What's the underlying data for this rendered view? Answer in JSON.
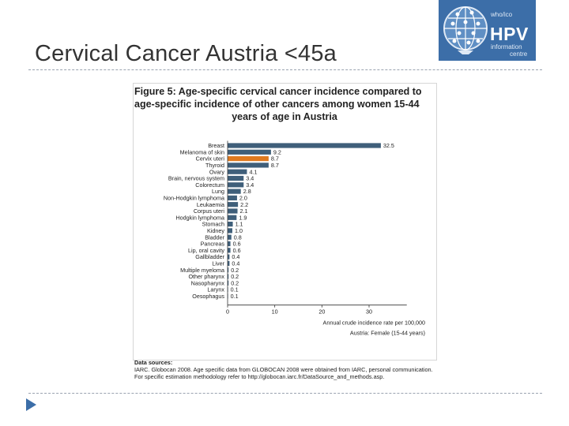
{
  "slide": {
    "title": "Cervical Cancer Austria <45a"
  },
  "logo": {
    "line1": "who/ico",
    "brand": "HPV",
    "line2": "information",
    "line3": "centre",
    "icon": "globe-icon"
  },
  "figure": {
    "title_line1": "Figure 5: Age-specific cervical cancer incidence compared to",
    "title_line2": "age-specific incidence of other cancers among women 15-44",
    "title_line3": "years of age in Austria",
    "sources_heading": "Data sources:",
    "sources_line1": "IARC. Globocan 2008. Age specific data from GLOBOCAN 2008 were obtained from IARC, personal communication.",
    "sources_line2": "For specific estimation methodology refer to http://globocan.iarc.fr/DataSource_and_methods.asp."
  },
  "chart_data": {
    "type": "bar",
    "orientation": "horizontal",
    "categories": [
      "Breast",
      "Melanoma of skin",
      "Cervix uteri",
      "Thyroid",
      "Ovary",
      "Brain, nervous system",
      "Colorectum",
      "Lung",
      "Non-Hodgkin lymphoma",
      "Leukaemia",
      "Corpus uteri",
      "Hodgkin lymphoma",
      "Stomach",
      "Kidney",
      "Bladder",
      "Pancreas",
      "Lip, oral cavity",
      "Gallbladder",
      "Liver",
      "Multiple myeloma",
      "Other pharynx",
      "Nasopharynx",
      "Larynx",
      "Oesophagus"
    ],
    "values": [
      32.5,
      9.2,
      8.7,
      8.7,
      4.1,
      3.4,
      3.4,
      2.8,
      2.0,
      2.2,
      2.1,
      1.9,
      1.1,
      1.0,
      0.8,
      0.6,
      0.6,
      0.4,
      0.4,
      0.2,
      0.2,
      0.2,
      0.1,
      0.1
    ],
    "value_labels": [
      "32.5",
      "9.2",
      "8.7",
      "8.7",
      "4.1",
      "3.4",
      "3.4",
      "2.8",
      "2.0",
      "2.2",
      "2.1",
      "1.9",
      "1.1",
      "1.0",
      "0.8",
      "0.6",
      "0.6",
      "0.4",
      "0.4",
      "0.2",
      "0.2",
      "0.2",
      "0.1",
      "0.1"
    ],
    "highlight_category": "Cervix uteri",
    "xticks": [
      0,
      10,
      20,
      30
    ],
    "xlim": [
      0,
      38
    ],
    "xlabel": "Annual crude incidence rate per 100,000",
    "note": "Austria: Female (15-44 years)",
    "colors": {
      "bar": "#3f5f7a",
      "highlight": "#e07a20"
    },
    "grid": false
  }
}
